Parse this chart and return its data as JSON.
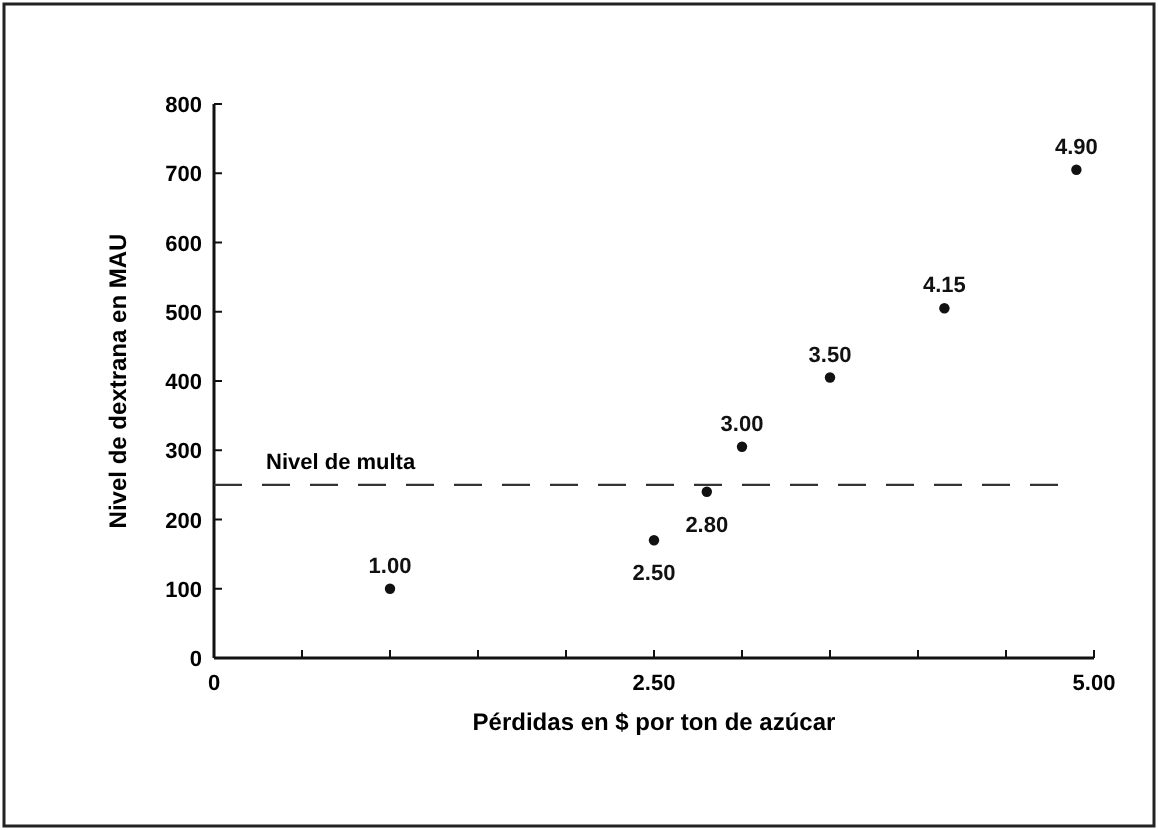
{
  "chart_data": {
    "type": "scatter",
    "xlabel": "Pérdidas en $ por ton de azúcar",
    "ylabel": "Nivel de dextrana en MAU",
    "x": [
      1.0,
      2.5,
      2.8,
      3.0,
      3.5,
      4.15,
      4.9
    ],
    "values": [
      100,
      170,
      240,
      305,
      405,
      505,
      705
    ],
    "annotations": [
      {
        "text": "1.00",
        "x": 1.0,
        "y": 100
      },
      {
        "text": "2.50",
        "x": 2.5,
        "y": 170
      },
      {
        "text": "2.80",
        "x": 2.8,
        "y": 240
      },
      {
        "text": "3.00",
        "x": 3.0,
        "y": 305
      },
      {
        "text": "3.50",
        "x": 3.5,
        "y": 405
      },
      {
        "text": "4.15",
        "x": 4.15,
        "y": 505
      },
      {
        "text": "4.90",
        "x": 4.9,
        "y": 705
      }
    ],
    "color": "#111111",
    "marker": "circle",
    "xlim": [
      0,
      5
    ],
    "xticks": [
      0,
      {
        "value": 0.5,
        "label": null
      },
      {
        "value": 1,
        "label": null
      },
      {
        "value": 1.5,
        "label": null
      },
      {
        "value": 2,
        "label": null
      },
      {
        "value": 2.5,
        "label": "2.50"
      },
      {
        "value": 3,
        "label": null
      },
      {
        "value": 3.5,
        "label": null
      },
      {
        "value": 4,
        "label": null
      },
      {
        "value": 4.5,
        "label": null
      },
      {
        "value": 5,
        "label": "5.00"
      }
    ],
    "ylim": [
      0,
      800
    ],
    "yticks": [
      0,
      100,
      200,
      300,
      400,
      500,
      600,
      700,
      800
    ],
    "ref_lines": [
      {
        "axis": "y",
        "value": 250,
        "label": "Nivel de multa",
        "line_style": "dashed",
        "color": "#333333"
      }
    ],
    "grid": false
  }
}
